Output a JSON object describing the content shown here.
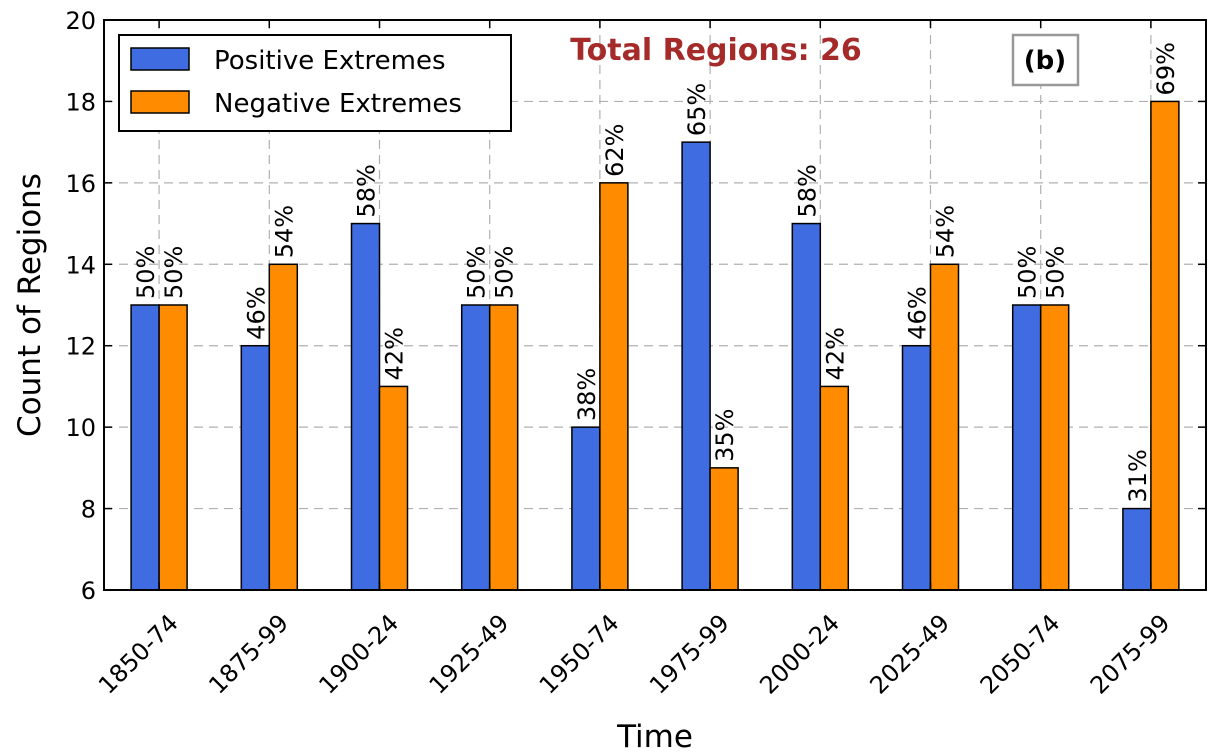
{
  "chart_data": {
    "type": "bar",
    "xlabel": "Time",
    "ylabel": "Count of Regions",
    "ylim": [
      6,
      20
    ],
    "yticks": [
      6,
      8,
      10,
      12,
      14,
      16,
      18,
      20
    ],
    "grid": true,
    "legend_position": "top-left",
    "categories": [
      "1850-74",
      "1875-99",
      "1900-24",
      "1925-49",
      "1950-74",
      "1975-99",
      "2000-24",
      "2025-49",
      "2050-74",
      "2075-99"
    ],
    "series": [
      {
        "name": "Positive Extremes",
        "color": "#3F6CE0",
        "values": [
          13,
          12,
          15,
          13,
          10,
          17,
          15,
          12,
          13,
          8
        ],
        "labels": [
          "50%",
          "46%",
          "58%",
          "50%",
          "38%",
          "65%",
          "58%",
          "46%",
          "50%",
          "31%"
        ]
      },
      {
        "name": "Negative Extremes",
        "color": "#FF8C00",
        "values": [
          13,
          14,
          11,
          13,
          16,
          9,
          11,
          14,
          13,
          18
        ],
        "labels": [
          "50%",
          "54%",
          "42%",
          "50%",
          "62%",
          "35%",
          "42%",
          "54%",
          "50%",
          "69%"
        ]
      }
    ],
    "annotation": {
      "text": "Total Regions: 26",
      "color": "#A52A2A"
    },
    "panel_label": "(b)"
  }
}
